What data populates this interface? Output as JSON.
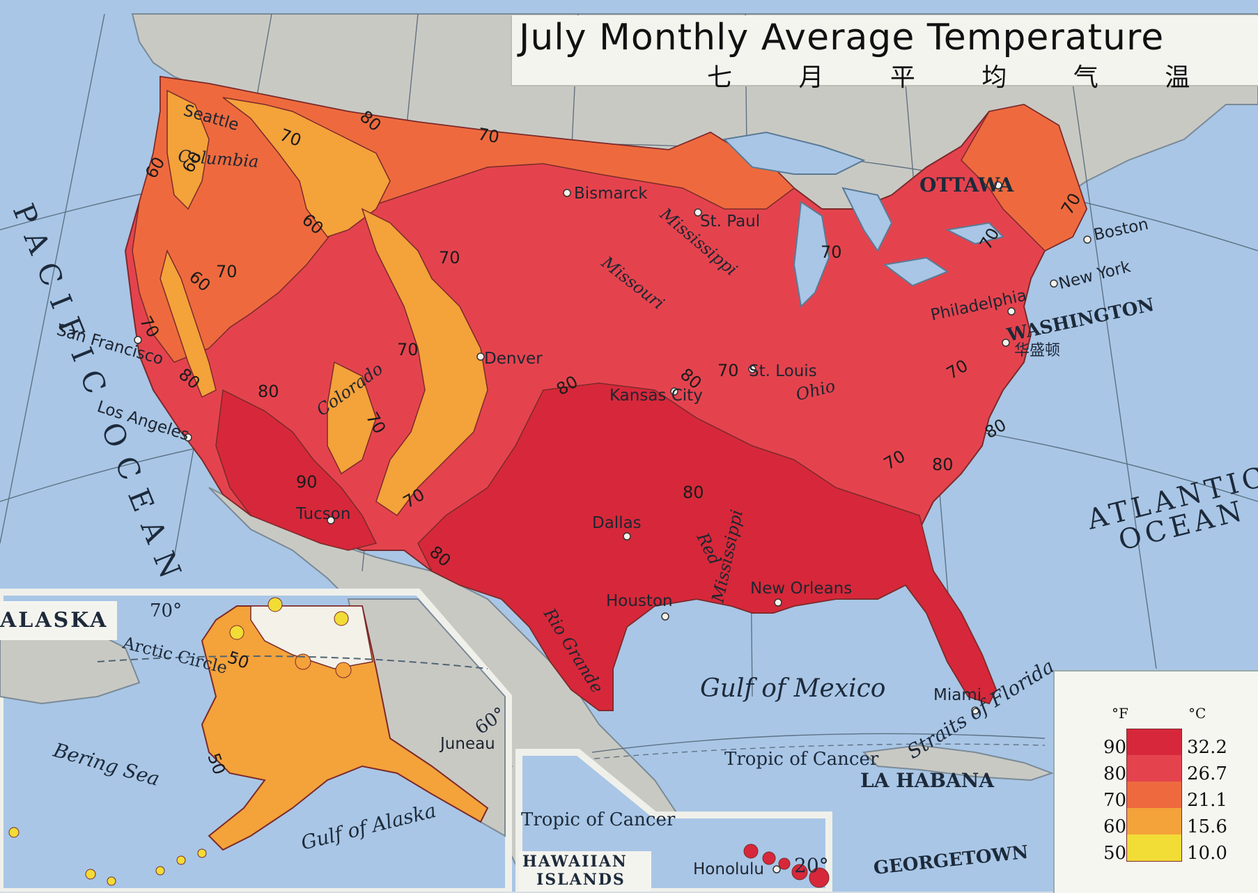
{
  "title": {
    "english": "July Monthly Average Temperature",
    "chinese": "七 月 平 均 气 温"
  },
  "legend": {
    "unit_f": "°F",
    "unit_c": "°C",
    "rows": [
      {
        "f": "90",
        "c": "32.2",
        "color": "#d6283a"
      },
      {
        "f": "80",
        "c": "26.7",
        "color": "#e4434e"
      },
      {
        "f": "70",
        "c": "21.1",
        "color": "#ee6a3e"
      },
      {
        "f": "60",
        "c": "15.6",
        "color": "#f4a23a"
      },
      {
        "f": "50",
        "c": "10.0",
        "color": "#f2dc36"
      }
    ]
  },
  "colors": {
    "ocean": "#a9c6e6",
    "land_outside": "#c9c9c4",
    "zone_90": "#d6283a",
    "zone_80": "#e4434e",
    "zone_70": "#ee6a3e",
    "zone_60": "#f4a23a",
    "zone_50": "#f2dc36",
    "alaska_tundra": "#f4f1e8"
  },
  "water_labels": {
    "pacific": "PACIFIC OCEAN",
    "atlantic_1": "ATLANTIC",
    "atlantic_2": "OCEAN",
    "gulf_mexico": "Gulf of Mexico",
    "straits_florida": "Straits of Florida",
    "bering": "Bering Sea",
    "gulf_alaska": "Gulf of Alaska",
    "tropic_1": "Tropic of Cancer",
    "tropic_2": "Tropic of Cancer",
    "arctic_circle": "Arctic Circle"
  },
  "capitals": {
    "ottawa": "OTTAWA",
    "washington": "WASHINGTON",
    "washington_zh": "华盛顿",
    "la_habana": "LA HABANA",
    "georgetown": "GEORGETOWN"
  },
  "cities": {
    "seattle": "Seattle",
    "bismarck": "Bismarck",
    "st_paul": "St. Paul",
    "boston": "Boston",
    "new_york": "New York",
    "philadelphia": "Philadelphia",
    "san_francisco": "San Francisco",
    "los_angeles": "Los Angeles",
    "denver": "Denver",
    "kansas_city": "Kansas City",
    "st_louis": "St. Louis",
    "tucson": "Tucson",
    "dallas": "Dallas",
    "houston": "Houston",
    "new_orleans": "New Orleans",
    "miami": "Miami",
    "honolulu": "Honolulu",
    "juneau": "Juneau"
  },
  "rivers": {
    "columbia": "Columbia",
    "colorado": "Colorado",
    "missouri": "Missouri",
    "mississippi_1": "Mississippi",
    "mississippi_2": "Mississippi",
    "ohio": "Ohio",
    "red": "Red",
    "rio_grande": "Rio Grande"
  },
  "insets": {
    "alaska": "ALASKA",
    "hawaii_1": "HAWAIIAN",
    "hawaii_2": "ISLANDS",
    "lat_70": "70°",
    "lat_60": "60°",
    "lat_20": "20°"
  },
  "isotherm_labels": [
    {
      "t": "80",
      "id": "iso-1"
    },
    {
      "t": "70",
      "id": "iso-2"
    },
    {
      "t": "70",
      "id": "iso-3"
    },
    {
      "t": "60",
      "id": "iso-4"
    },
    {
      "t": "60",
      "id": "iso-5"
    },
    {
      "t": "60",
      "id": "iso-6"
    },
    {
      "t": "70",
      "id": "iso-7"
    },
    {
      "t": "60",
      "id": "iso-8"
    },
    {
      "t": "70",
      "id": "iso-9"
    },
    {
      "t": "70",
      "id": "iso-10"
    },
    {
      "t": "80",
      "id": "iso-11"
    },
    {
      "t": "80",
      "id": "iso-12"
    },
    {
      "t": "70",
      "id": "iso-13"
    },
    {
      "t": "70",
      "id": "iso-14"
    },
    {
      "t": "90",
      "id": "iso-15"
    },
    {
      "t": "70",
      "id": "iso-16"
    },
    {
      "t": "80",
      "id": "iso-17"
    },
    {
      "t": "80",
      "id": "iso-18"
    },
    {
      "t": "80",
      "id": "iso-19"
    },
    {
      "t": "80",
      "id": "iso-20"
    },
    {
      "t": "70",
      "id": "iso-21"
    },
    {
      "t": "70",
      "id": "iso-22"
    },
    {
      "t": "70",
      "id": "iso-23"
    },
    {
      "t": "70",
      "id": "iso-24"
    },
    {
      "t": "70",
      "id": "iso-25"
    },
    {
      "t": "80",
      "id": "iso-26"
    },
    {
      "t": "80",
      "id": "iso-27"
    },
    {
      "t": "70",
      "id": "iso-28"
    },
    {
      "t": "50",
      "id": "iso-29"
    },
    {
      "t": "50",
      "id": "iso-30"
    }
  ]
}
